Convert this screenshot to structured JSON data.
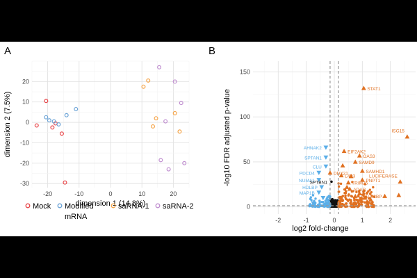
{
  "chart_data": [
    {
      "panel_label": "A",
      "type": "scatter",
      "title": "",
      "xlabel": "dimension 1 (14.8%)",
      "ylabel": "dimension 2 (7.5%)",
      "xlim": [
        -25,
        25
      ],
      "ylim": [
        -32,
        30
      ],
      "xticks": [
        "-20",
        "-10",
        "0",
        "10",
        "20"
      ],
      "yticks": [
        "-30",
        "-20",
        "-10",
        "0",
        "10",
        "20"
      ],
      "xtick_values": [
        -20,
        -10,
        0,
        10,
        20
      ],
      "ytick_values": [
        -30,
        -20,
        -10,
        0,
        10,
        20
      ],
      "grid": true,
      "legend_position": "bottom",
      "series": [
        {
          "name": "Mock",
          "label_lines": [
            "Mock"
          ],
          "color": "#e8474a",
          "points": [
            [
              -23.5,
              -1.5
            ],
            [
              -20.5,
              10.5
            ],
            [
              -18.5,
              -2.5
            ],
            [
              -17.5,
              -0.5
            ],
            [
              -15.5,
              -5.5
            ],
            [
              -14.5,
              -29.5
            ]
          ]
        },
        {
          "name": "Modified mRNA",
          "label_lines": [
            "Modified",
            "mRNA"
          ],
          "color": "#6ba3d6",
          "points": [
            [
              -20.5,
              2.5
            ],
            [
              -19.5,
              1.0
            ],
            [
              -18.0,
              0.5
            ],
            [
              -16.5,
              -1.0
            ],
            [
              -14.0,
              3.5
            ],
            [
              -11.0,
              6.5
            ]
          ]
        },
        {
          "name": "saRNA-1",
          "label_lines": [
            "saRNA-1"
          ],
          "color": "#f5a54a",
          "points": [
            [
              10.5,
              17.5
            ],
            [
              12.0,
              20.5
            ],
            [
              13.5,
              -2.0
            ],
            [
              14.5,
              2.0
            ],
            [
              20.5,
              4.5
            ],
            [
              22.0,
              -4.5
            ]
          ]
        },
        {
          "name": "saRNA-2",
          "label_lines": [
            "saRNA-2"
          ],
          "color": "#c08fd0",
          "points": [
            [
              15.5,
              27.0
            ],
            [
              16.0,
              -18.5
            ],
            [
              17.5,
              0.5
            ],
            [
              18.5,
              -23.0
            ],
            [
              20.5,
              20.0
            ],
            [
              22.5,
              9.5
            ],
            [
              23.5,
              -20.0
            ]
          ]
        }
      ]
    },
    {
      "panel_label": "B",
      "type": "scatter",
      "subtype": "volcano",
      "title": "",
      "xlabel": "log2 fold-change",
      "ylabel": "-log10 FDR adjusted p-value",
      "xlim": [
        -2.9,
        2.9
      ],
      "ylim": [
        -8,
        162
      ],
      "xticks": [
        "-2",
        "-1",
        "0",
        "1",
        "2"
      ],
      "yticks": [
        "0",
        "50",
        "100",
        "150"
      ],
      "xtick_values": [
        -2,
        -1,
        0,
        1,
        2
      ],
      "ytick_values": [
        0,
        50,
        100,
        150
      ],
      "grid": true,
      "threshold_lines": {
        "x": [
          -0.15,
          0.15
        ],
        "y": [
          1.3
        ]
      },
      "colors": {
        "up": "#e07020",
        "down": "#5aaee8",
        "ns": "#111111",
        "threshold": "#999999"
      },
      "labeled_genes": [
        {
          "gene": "STAT1",
          "x": 1.05,
          "y": 132,
          "group": "up"
        },
        {
          "gene": "ISG15",
          "x": 2.6,
          "y": 78,
          "group": "up"
        },
        {
          "gene": "OAS3",
          "x": 0.9,
          "y": 57,
          "group": "up"
        },
        {
          "gene": "SAMD9",
          "x": 0.75,
          "y": 50,
          "group": "up"
        },
        {
          "gene": "EIF2AK2",
          "x": 0.35,
          "y": 62,
          "group": "up"
        },
        {
          "gene": "SAMHD1",
          "x": 1.0,
          "y": 40,
          "group": "up"
        },
        {
          "gene": "LUCIFERASE",
          "x": 2.35,
          "y": 28,
          "group": "up"
        },
        {
          "gene": "DDX21",
          "x": -0.15,
          "y": 38,
          "group": "up"
        },
        {
          "gene": "L4P3",
          "x": 0.25,
          "y": 35,
          "group": "up"
        },
        {
          "gene": "PNPT1",
          "x": 1.0,
          "y": 30,
          "group": "up"
        },
        {
          "gene": "ADAR",
          "x": 0.55,
          "y": 20,
          "group": "up"
        },
        {
          "gene": "LGALS3BP",
          "x": 0.75,
          "y": 12,
          "group": "up"
        },
        {
          "gene": "TRIM25",
          "x": 0.5,
          "y": 27,
          "group": "up"
        },
        {
          "gene": "AHNAK2",
          "x": -0.3,
          "y": 66,
          "group": "down"
        },
        {
          "gene": "SPTAN1",
          "x": -0.3,
          "y": 55,
          "group": "down"
        },
        {
          "gene": "CLU",
          "x": -0.3,
          "y": 45,
          "group": "down"
        },
        {
          "gene": "PDCD4",
          "x": -0.55,
          "y": 38,
          "group": "down"
        },
        {
          "gene": "NUMA1",
          "x": -0.55,
          "y": 30,
          "group": "down"
        },
        {
          "gene": "HDLBP",
          "x": -0.45,
          "y": 22,
          "group": "down"
        },
        {
          "gene": "MAP1B",
          "x": -0.55,
          "y": 16,
          "group": "down"
        },
        {
          "gene": "SPTBN1",
          "x": -0.1,
          "y": 28,
          "group": "ns"
        }
      ],
      "other_points": [
        {
          "x": 1.8,
          "y": 12,
          "group": "up",
          "shape": "triangle"
        },
        {
          "x": 2.3,
          "y": 13,
          "group": "up",
          "shape": "triangle"
        },
        {
          "x": 1.3,
          "y": 8,
          "group": "up",
          "shape": "triangle"
        },
        {
          "x": 0.6,
          "y": 34,
          "group": "up",
          "shape": "triangle"
        },
        {
          "x": 0.45,
          "y": 22,
          "group": "up",
          "shape": "triangle"
        },
        {
          "x": 0.9,
          "y": 15,
          "group": "up",
          "shape": "triangle"
        },
        {
          "x": 0.3,
          "y": 46,
          "group": "up",
          "shape": "triangle"
        },
        {
          "x": 0.75,
          "y": 4,
          "group": "up",
          "shape": "triangle"
        },
        {
          "x": 1.1,
          "y": 10,
          "group": "up",
          "shape": "triangle"
        },
        {
          "x": -0.75,
          "y": 4,
          "group": "down",
          "shape": "triangle"
        },
        {
          "x": -0.4,
          "y": 10,
          "group": "down",
          "shape": "triangle"
        }
      ]
    }
  ]
}
